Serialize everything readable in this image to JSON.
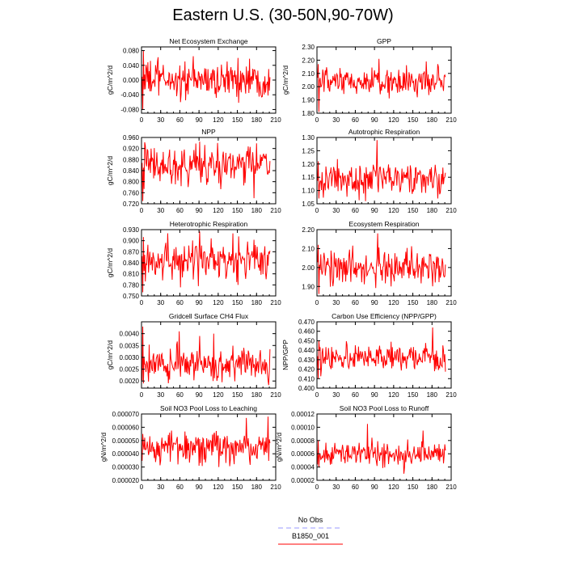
{
  "title": "Eastern U.S. (30-50N,90-70W)",
  "colors": {
    "model": "#ff0000",
    "obs": "#9999ff",
    "axis": "#000000"
  },
  "legend": [
    {
      "name": "No Obs",
      "color": "#9999ff",
      "style": "dashed"
    },
    {
      "name": "B1850_001",
      "color": "#ff0000",
      "style": "solid"
    }
  ],
  "chart_data": [
    {
      "type": "line",
      "title": "Net Ecosystem Exchange",
      "ylabel": "gC/m^2/d",
      "xlim": [
        0,
        210
      ],
      "xticks": [
        0,
        30,
        60,
        90,
        120,
        150,
        180,
        210
      ],
      "ylim": [
        -0.09,
        0.09
      ],
      "yticks": [
        -0.08,
        -0.04,
        0,
        0.04,
        0.08
      ],
      "yfmt": 3,
      "mean": 0.0,
      "amp": 0.025,
      "spikes": [
        [
          1,
          -0.08
        ],
        [
          2,
          0.08
        ],
        [
          25,
          0.062
        ],
        [
          60,
          -0.06
        ],
        [
          150,
          0.06
        ],
        [
          168,
          0.058
        ]
      ],
      "series": [
        {
          "name": "B1850_001"
        }
      ]
    },
    {
      "type": "line",
      "title": "GPP",
      "ylabel": "gC/m^2/d",
      "xlim": [
        0,
        210
      ],
      "xticks": [
        0,
        30,
        60,
        90,
        120,
        150,
        180,
        210
      ],
      "ylim": [
        1.8,
        2.3
      ],
      "yticks": [
        1.8,
        1.9,
        2.0,
        2.1,
        2.2,
        2.3
      ],
      "yfmt": 2,
      "mean": 2.03,
      "amp": 0.05,
      "spikes": [
        [
          1,
          2.17
        ],
        [
          2,
          1.81
        ],
        [
          96,
          2.21
        ],
        [
          170,
          2.19
        ],
        [
          188,
          2.17
        ]
      ],
      "series": [
        {
          "name": "B1850_001"
        }
      ]
    },
    {
      "type": "line",
      "title": "NPP",
      "ylabel": "gC/m^2/d",
      "xlim": [
        0,
        210
      ],
      "xticks": [
        0,
        30,
        60,
        90,
        120,
        150,
        180,
        210
      ],
      "ylim": [
        0.72,
        0.96
      ],
      "yticks": [
        0.72,
        0.76,
        0.8,
        0.84,
        0.88,
        0.92,
        0.96
      ],
      "yfmt": 3,
      "mean": 0.86,
      "amp": 0.035,
      "spikes": [
        [
          1,
          0.73
        ],
        [
          90,
          0.945
        ],
        [
          118,
          0.94
        ],
        [
          175,
          0.74
        ]
      ],
      "series": [
        {
          "name": "B1850_001"
        }
      ]
    },
    {
      "type": "line",
      "title": "Autotrophic Respiration",
      "ylabel": "",
      "xlim": [
        0,
        210
      ],
      "xticks": [
        0,
        30,
        60,
        90,
        120,
        150,
        180,
        210
      ],
      "ylim": [
        1.05,
        1.3
      ],
      "yticks": [
        1.05,
        1.1,
        1.15,
        1.2,
        1.25,
        1.3
      ],
      "yfmt": 2,
      "mean": 1.14,
      "amp": 0.03,
      "spikes": [
        [
          1,
          1.21
        ],
        [
          2,
          1.07
        ],
        [
          93,
          1.29
        ],
        [
          75,
          1.06
        ]
      ],
      "series": [
        {
          "name": "B1850_001"
        }
      ]
    },
    {
      "type": "line",
      "title": "Heterotrophic Respiration",
      "ylabel": "gC/m^2/d",
      "xlim": [
        0,
        210
      ],
      "xticks": [
        0,
        30,
        60,
        90,
        120,
        150,
        180,
        210
      ],
      "ylim": [
        0.75,
        0.93
      ],
      "yticks": [
        0.75,
        0.78,
        0.81,
        0.84,
        0.87,
        0.9,
        0.93
      ],
      "yfmt": 3,
      "mean": 0.845,
      "amp": 0.03,
      "spikes": [
        [
          1,
          0.76
        ],
        [
          2,
          0.91
        ],
        [
          40,
          0.92
        ],
        [
          90,
          0.925
        ],
        [
          150,
          0.78
        ]
      ],
      "series": [
        {
          "name": "B1850_001"
        }
      ]
    },
    {
      "type": "line",
      "title": "Ecosystem Respiration",
      "ylabel": "",
      "xlim": [
        0,
        210
      ],
      "xticks": [
        0,
        30,
        60,
        90,
        120,
        150,
        180,
        210
      ],
      "ylim": [
        1.85,
        2.2
      ],
      "yticks": [
        1.9,
        2.0,
        2.1,
        2.2
      ],
      "yfmt": 2,
      "mean": 2.0,
      "amp": 0.045,
      "spikes": [
        [
          1,
          2.12
        ],
        [
          2,
          1.86
        ],
        [
          94,
          2.18
        ],
        [
          115,
          1.9
        ]
      ],
      "series": [
        {
          "name": "B1850_001"
        }
      ]
    },
    {
      "type": "line",
      "title": "Gridcell Surface CH4 Flux",
      "ylabel": "gC/m^2/d",
      "xlim": [
        0,
        210
      ],
      "xticks": [
        0,
        30,
        60,
        90,
        120,
        150,
        180,
        210
      ],
      "ylim": [
        0.0017,
        0.0045
      ],
      "yticks": [
        0.002,
        0.0025,
        0.003,
        0.0035,
        0.004
      ],
      "yfmt": 4,
      "mean": 0.0027,
      "amp": 0.00035,
      "spikes": [
        [
          1,
          0.0043
        ],
        [
          2,
          0.0019
        ],
        [
          58,
          0.0041
        ],
        [
          90,
          0.0039
        ],
        [
          112,
          0.004
        ]
      ],
      "series": [
        {
          "name": "B1850_001"
        }
      ]
    },
    {
      "type": "line",
      "title": "Carbon Use Efficiency (NPP/GPP)",
      "ylabel": "NPP/GPP",
      "xlim": [
        0,
        210
      ],
      "xticks": [
        0,
        30,
        60,
        90,
        120,
        150,
        180,
        210
      ],
      "ylim": [
        0.4,
        0.47
      ],
      "yticks": [
        0.4,
        0.41,
        0.42,
        0.43,
        0.44,
        0.45,
        0.46,
        0.47
      ],
      "yfmt": 3,
      "mean": 0.432,
      "amp": 0.007,
      "spikes": [
        [
          1,
          0.41
        ],
        [
          2,
          0.45
        ],
        [
          180,
          0.464
        ],
        [
          185,
          0.42
        ]
      ],
      "series": [
        {
          "name": "B1850_001"
        }
      ]
    },
    {
      "type": "line",
      "title": "Soil NO3 Pool Loss to Leaching",
      "ylabel": "gN/m^2/d",
      "xlim": [
        0,
        210
      ],
      "xticks": [
        0,
        30,
        60,
        90,
        120,
        150,
        180,
        210
      ],
      "ylim": [
        2e-05,
        7e-05
      ],
      "yticks": [
        2e-05,
        3e-05,
        4e-05,
        5e-05,
        6e-05,
        7e-05
      ],
      "yfmt": 6,
      "mean": 4.5e-05,
      "amp": 7e-06,
      "spikes": [
        [
          1,
          5.5e-05
        ],
        [
          163,
          6.7e-05
        ],
        [
          197,
          6.8e-05
        ],
        [
          120,
          3e-05
        ]
      ],
      "series": [
        {
          "name": "B1850_001"
        }
      ]
    },
    {
      "type": "line",
      "title": "Soil NO3 Pool Loss to Runoff",
      "ylabel": "gN/m^2/d",
      "xlim": [
        0,
        210
      ],
      "xticks": [
        0,
        30,
        60,
        90,
        120,
        150,
        180,
        210
      ],
      "ylim": [
        2e-05,
        0.00012
      ],
      "yticks": [
        2e-05,
        4e-05,
        6e-05,
        8e-05,
        0.0001,
        0.00012
      ],
      "yfmt": 5,
      "mean": 6e-05,
      "amp": 9e-06,
      "spikes": [
        [
          1,
          8e-05
        ],
        [
          2,
          4e-05
        ],
        [
          78,
          0.000105
        ],
        [
          165,
          9.5e-05
        ],
        [
          135,
          3e-05
        ]
      ],
      "series": [
        {
          "name": "B1850_001"
        }
      ]
    }
  ]
}
